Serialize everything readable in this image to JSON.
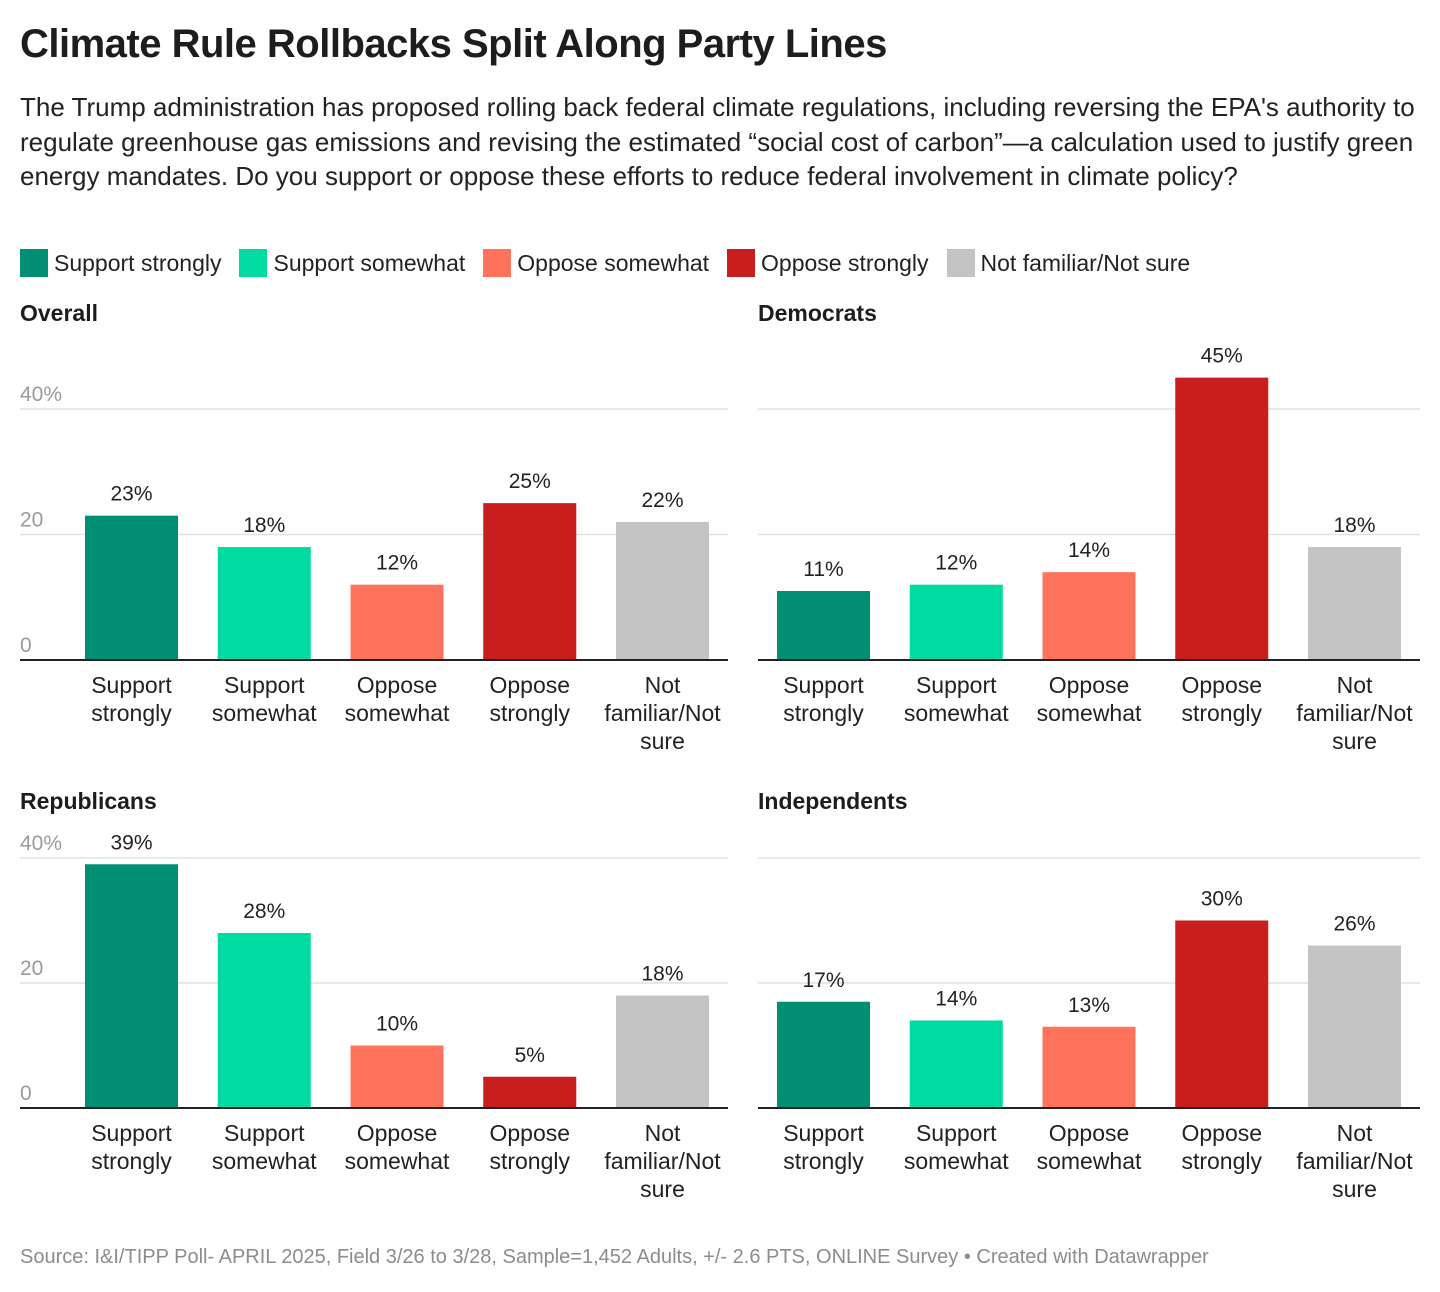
{
  "title": "Climate Rule Rollbacks Split Along Party Lines",
  "subtitle": "The Trump administration has proposed rolling back federal climate regulations, including reversing the EPA's authority to regulate greenhouse gas emissions and revising the estimated “social cost of carbon”—a calculation used to justify green energy mandates. Do you support or oppose these efforts to reduce federal involvement in climate policy?",
  "legend": [
    {
      "label": "Support strongly",
      "color": "#008f73"
    },
    {
      "label": "Support somewhat",
      "color": "#00dba2"
    },
    {
      "label": "Oppose somewhat",
      "color": "#ff735c"
    },
    {
      "label": "Oppose strongly",
      "color": "#c91e1e"
    },
    {
      "label": "Not familiar/Not sure",
      "color": "#c4c4c4"
    }
  ],
  "chart_data": [
    {
      "type": "bar",
      "title": "Overall",
      "categories": [
        "Support strongly",
        "Support somewhat",
        "Oppose somewhat",
        "Oppose strongly",
        "Not familiar/Not sure"
      ],
      "category_lines": [
        [
          "Support",
          "strongly"
        ],
        [
          "Support",
          "somewhat"
        ],
        [
          "Oppose",
          "somewhat"
        ],
        [
          "Oppose",
          "strongly"
        ],
        [
          "Not",
          "familiar/Not",
          "sure"
        ]
      ],
      "values": [
        23,
        18,
        12,
        25,
        22
      ],
      "value_labels": [
        "23%",
        "18%",
        "12%",
        "25%",
        "22%"
      ],
      "yticks": [
        0,
        20,
        40
      ],
      "ytick_labels": [
        "0",
        "20",
        "40%"
      ],
      "ylim": [
        0,
        45
      ]
    },
    {
      "type": "bar",
      "title": "Democrats",
      "categories": [
        "Support strongly",
        "Support somewhat",
        "Oppose somewhat",
        "Oppose strongly",
        "Not familiar/Not sure"
      ],
      "category_lines": [
        [
          "Support",
          "strongly"
        ],
        [
          "Support",
          "somewhat"
        ],
        [
          "Oppose",
          "somewhat"
        ],
        [
          "Oppose",
          "strongly"
        ],
        [
          "Not",
          "familiar/Not",
          "sure"
        ]
      ],
      "values": [
        11,
        12,
        14,
        45,
        18
      ],
      "value_labels": [
        "11%",
        "12%",
        "14%",
        "45%",
        "18%"
      ],
      "yticks": [
        0,
        20,
        40
      ],
      "ytick_labels": [],
      "ylim": [
        0,
        45
      ]
    },
    {
      "type": "bar",
      "title": "Republicans",
      "categories": [
        "Support strongly",
        "Support somewhat",
        "Oppose somewhat",
        "Oppose strongly",
        "Not familiar/Not sure"
      ],
      "category_lines": [
        [
          "Support",
          "strongly"
        ],
        [
          "Support",
          "somewhat"
        ],
        [
          "Oppose",
          "somewhat"
        ],
        [
          "Oppose",
          "strongly"
        ],
        [
          "Not",
          "familiar/Not",
          "sure"
        ]
      ],
      "values": [
        39,
        28,
        10,
        5,
        18
      ],
      "value_labels": [
        "39%",
        "28%",
        "10%",
        "5%",
        "18%"
      ],
      "yticks": [
        0,
        20,
        40
      ],
      "ytick_labels": [
        "0",
        "20",
        "40%"
      ],
      "ylim": [
        0,
        40
      ]
    },
    {
      "type": "bar",
      "title": "Independents",
      "categories": [
        "Support strongly",
        "Support somewhat",
        "Oppose somewhat",
        "Oppose strongly",
        "Not familiar/Not sure"
      ],
      "category_lines": [
        [
          "Support",
          "strongly"
        ],
        [
          "Support",
          "somewhat"
        ],
        [
          "Oppose",
          "somewhat"
        ],
        [
          "Oppose",
          "strongly"
        ],
        [
          "Not",
          "familiar/Not",
          "sure"
        ]
      ],
      "values": [
        17,
        14,
        13,
        30,
        26
      ],
      "value_labels": [
        "17%",
        "14%",
        "13%",
        "30%",
        "26%"
      ],
      "yticks": [
        0,
        20,
        40
      ],
      "ytick_labels": [],
      "ylim": [
        0,
        40
      ]
    }
  ],
  "source": "Source: I&I/TIPP Poll- APRIL 2025, Field 3/26 to 3/28, Sample=1,452 Adults, +/- 2.6 PTS, ONLINE Survey • Created with Datawrapper"
}
